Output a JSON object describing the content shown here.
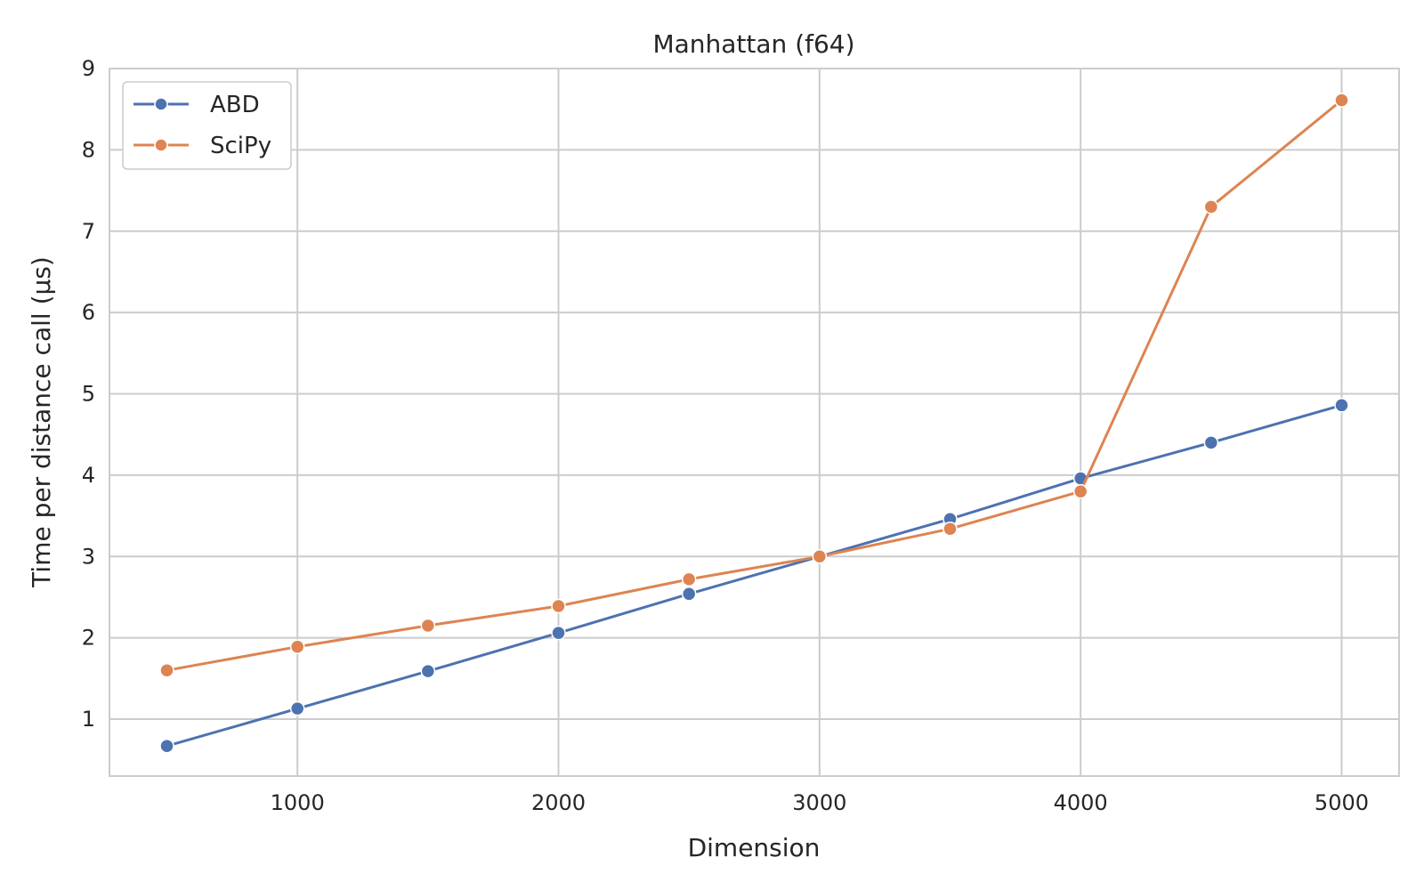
{
  "chart_data": {
    "type": "line",
    "title": "Manhattan (f64)",
    "xlabel": "Dimension",
    "ylabel": "Time per distance call (µs)",
    "xlim": [
      280,
      5220
    ],
    "ylim": [
      0.3,
      9.0
    ],
    "xticks": [
      1000,
      2000,
      3000,
      4000,
      5000
    ],
    "yticks": [
      1,
      2,
      3,
      4,
      5,
      6,
      7,
      8,
      9
    ],
    "grid": true,
    "legend_position": "top-left",
    "x": [
      500,
      1000,
      1500,
      2000,
      2500,
      3000,
      3500,
      4000,
      4500,
      5000
    ],
    "series": [
      {
        "name": "ABD",
        "color": "#4c72b0",
        "values": [
          0.67,
          1.13,
          1.59,
          2.06,
          2.54,
          3.0,
          3.46,
          3.96,
          4.4,
          4.86
        ]
      },
      {
        "name": "SciPy",
        "color": "#dd8452",
        "values": [
          1.6,
          1.89,
          2.15,
          2.39,
          2.72,
          3.0,
          3.34,
          3.8,
          7.3,
          8.61
        ]
      }
    ]
  }
}
